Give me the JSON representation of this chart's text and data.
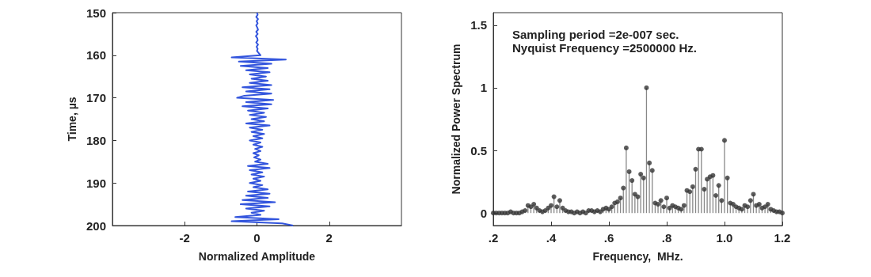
{
  "chart_data": [
    {
      "type": "line",
      "xlabel": "Normalized Amplitude",
      "ylabel": "Time, µs",
      "color": "#3355dd",
      "xlim": [
        -4,
        4
      ],
      "xticks": [
        -2,
        0,
        2
      ],
      "ylim": [
        200,
        150
      ],
      "yticks": [
        150,
        160,
        170,
        180,
        190,
        200
      ],
      "x": [
        0,
        0.02,
        -0.02,
        0.03,
        -0.01,
        0.02,
        -0.02,
        0.01,
        0.03,
        -0.02,
        0.02,
        -0.03,
        0.01,
        0.02,
        -0.02,
        0.03,
        -0.01,
        0.02,
        0,
        0.05,
        0.1,
        -0.7,
        0.8,
        -0.5,
        0.4,
        -0.45,
        0.3,
        -0.3,
        0.35,
        -0.2,
        0.25,
        -0.15,
        0.3,
        -0.2,
        0.4,
        -0.4,
        0.35,
        -0.3,
        0.4,
        -0.35,
        -0.55,
        0.45,
        -0.3,
        0.4,
        -0.4,
        0.3,
        -0.25,
        0.2,
        -0.2,
        0.25,
        -0.15,
        0.2,
        -0.3,
        0.35,
        -0.2,
        0.15,
        -0.15,
        0.2,
        -0.1,
        0.15,
        -0.2,
        0.1,
        -0.1,
        0.15,
        -0.05,
        0.1,
        -0.1,
        0.05,
        -0.08,
        0.1,
        -0.05,
        0.3,
        -0.25,
        0.35,
        -0.2,
        0.15,
        -0.15,
        0.2,
        -0.1,
        0.1,
        -0.2,
        0.15,
        -0.1,
        0.3,
        -0.25,
        0.35,
        -0.3,
        0.3,
        -0.4,
        0.5,
        -0.45,
        0.35,
        -0.3,
        0.2,
        -0.15,
        0.1,
        -0.6,
        0.6,
        -0.7,
        0.7,
        1.0
      ],
      "values": [
        150,
        150.5,
        151,
        151.5,
        152,
        152.5,
        153,
        153.5,
        154,
        154.5,
        155,
        155.5,
        156,
        156.5,
        157,
        157.5,
        158,
        158.5,
        159,
        159.5,
        160,
        160.5,
        161,
        161.5,
        162,
        162.5,
        163,
        163.5,
        164,
        164.5,
        165,
        165.5,
        166,
        166.5,
        167,
        167.5,
        168,
        168.5,
        169,
        169.5,
        170,
        170.5,
        171,
        171.5,
        172,
        172.5,
        173,
        173.5,
        174,
        174.5,
        175,
        175.5,
        176,
        176.5,
        177,
        177.5,
        178,
        178.5,
        179,
        179.5,
        180,
        180.5,
        181,
        181.5,
        182,
        182.5,
        183,
        183.5,
        184,
        184.5,
        185,
        185.5,
        186,
        186.5,
        187,
        187.5,
        188,
        188.5,
        189,
        189.5,
        190,
        190.5,
        191,
        191.5,
        192,
        192.5,
        193,
        193.5,
        194,
        194.5,
        195,
        195.5,
        196,
        196.5,
        197,
        197.5,
        198,
        198.5,
        199,
        199.5,
        200
      ]
    },
    {
      "type": "lollipop",
      "xlabel": "Frequency,  MHz.",
      "ylabel": "Normalized Power Spectrum",
      "color": "#333333",
      "marker": "circle",
      "xlim": [
        0.2,
        1.2
      ],
      "xticks": [
        {
          "value": 0.2,
          "label": ".2"
        },
        {
          "value": 0.4,
          "label": ".4"
        },
        {
          "value": 0.6,
          "label": ".6"
        },
        {
          "value": 0.8,
          "label": ".8"
        },
        {
          "value": 1.0,
          "label": "1.0"
        },
        {
          "value": 1.2,
          "label": "1.2"
        }
      ],
      "ylim": [
        -0.1,
        1.6
      ],
      "yticks": [
        0,
        0.5,
        1,
        1.5
      ],
      "annotations": [
        "Sampling period =2e-007 sec.",
        "Nyquist Frequency =2500000 Hz."
      ],
      "x": [
        0.2,
        0.21,
        0.22,
        0.23,
        0.24,
        0.25,
        0.26,
        0.27,
        0.28,
        0.29,
        0.3,
        0.31,
        0.32,
        0.33,
        0.34,
        0.35,
        0.36,
        0.37,
        0.38,
        0.39,
        0.4,
        0.41,
        0.42,
        0.43,
        0.44,
        0.45,
        0.46,
        0.47,
        0.48,
        0.49,
        0.5,
        0.51,
        0.52,
        0.53,
        0.54,
        0.55,
        0.56,
        0.57,
        0.58,
        0.59,
        0.6,
        0.61,
        0.62,
        0.63,
        0.64,
        0.65,
        0.66,
        0.67,
        0.68,
        0.69,
        0.7,
        0.71,
        0.72,
        0.73,
        0.74,
        0.75,
        0.76,
        0.77,
        0.78,
        0.79,
        0.8,
        0.81,
        0.82,
        0.83,
        0.84,
        0.85,
        0.86,
        0.87,
        0.88,
        0.89,
        0.9,
        0.91,
        0.92,
        0.93,
        0.94,
        0.95,
        0.96,
        0.97,
        0.98,
        0.99,
        1.0,
        1.01,
        1.02,
        1.03,
        1.04,
        1.05,
        1.06,
        1.07,
        1.08,
        1.09,
        1.1,
        1.11,
        1.12,
        1.13,
        1.14,
        1.15,
        1.16,
        1.17,
        1.18,
        1.19,
        1.2
      ],
      "values": [
        0,
        0,
        0,
        0,
        0,
        0,
        0.01,
        0,
        0,
        0,
        0.01,
        0.02,
        0.06,
        0.05,
        0.07,
        0.04,
        0.02,
        0.01,
        0.02,
        0.04,
        0.06,
        0.13,
        0.05,
        0.1,
        0.04,
        0.02,
        0.01,
        0.01,
        0,
        0.01,
        0,
        0.01,
        0,
        0.02,
        0.02,
        0.01,
        0.02,
        0.01,
        0.03,
        0.04,
        0.03,
        0.05,
        0.08,
        0.09,
        0.12,
        0.2,
        0.52,
        0.33,
        0.26,
        0.15,
        0.13,
        0.31,
        0.28,
        1.0,
        0.4,
        0.34,
        0.08,
        0.07,
        0.1,
        0.05,
        0.12,
        0.04,
        0.06,
        0.05,
        0.04,
        0.03,
        0.06,
        0.18,
        0.17,
        0.21,
        0.35,
        0.51,
        0.51,
        0.19,
        0.27,
        0.29,
        0.3,
        0.14,
        0.22,
        0.1,
        0.58,
        0.28,
        0.08,
        0.07,
        0.05,
        0.04,
        0.03,
        0.06,
        0.05,
        0.1,
        0.15,
        0.06,
        0.07,
        0.04,
        0.05,
        0.07,
        0.03,
        0.02,
        0.01,
        0.01,
        0
      ]
    }
  ]
}
